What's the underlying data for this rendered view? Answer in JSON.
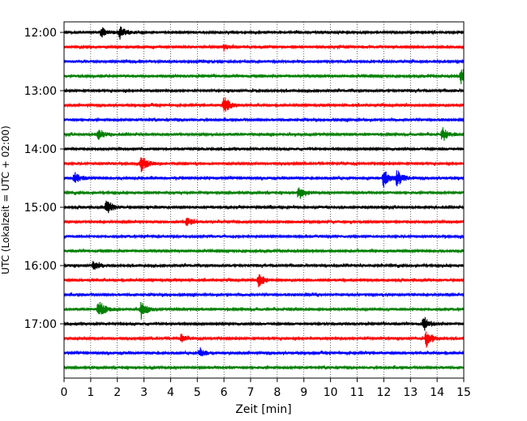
{
  "chart_data": {
    "type": "line",
    "title": "",
    "xlabel": "Zeit  [min]",
    "ylabel": "UTC (Lokalzeit = UTC + 02:00)",
    "xlim": [
      0,
      15
    ],
    "x_ticks": [
      "0",
      "1",
      "2",
      "3",
      "4",
      "5",
      "6",
      "7",
      "8",
      "9",
      "10",
      "11",
      "12",
      "13",
      "14",
      "15"
    ],
    "y_tick_labels": [
      "12:00",
      "13:00",
      "14:00",
      "15:00",
      "16:00",
      "17:00"
    ],
    "grid": "vertical dotted lines at each minute",
    "trace_colors": [
      "#000000",
      "#ff0000",
      "#0000ff",
      "#008000"
    ],
    "traces": [
      {
        "start": "12:00",
        "color": "#000000",
        "events": [
          [
            1.4,
            6
          ],
          [
            2.1,
            8
          ]
        ]
      },
      {
        "start": "12:15",
        "color": "#ff0000",
        "events": [
          [
            6.0,
            3
          ]
        ]
      },
      {
        "start": "12:30",
        "color": "#0000ff",
        "events": []
      },
      {
        "start": "12:45",
        "color": "#008000",
        "events": [
          [
            14.9,
            12
          ]
        ]
      },
      {
        "start": "13:00",
        "color": "#000000",
        "events": []
      },
      {
        "start": "13:15",
        "color": "#ff0000",
        "events": [
          [
            6.0,
            12
          ]
        ]
      },
      {
        "start": "13:30",
        "color": "#0000ff",
        "events": []
      },
      {
        "start": "13:45",
        "color": "#008000",
        "events": [
          [
            1.3,
            7
          ],
          [
            14.2,
            9
          ]
        ]
      },
      {
        "start": "14:00",
        "color": "#000000",
        "events": []
      },
      {
        "start": "14:15",
        "color": "#ff0000",
        "events": [
          [
            2.9,
            10
          ]
        ]
      },
      {
        "start": "14:30",
        "color": "#0000ff",
        "events": [
          [
            0.4,
            7
          ],
          [
            12.0,
            12
          ],
          [
            12.5,
            11
          ]
        ]
      },
      {
        "start": "14:45",
        "color": "#008000",
        "events": [
          [
            8.8,
            9
          ]
        ]
      },
      {
        "start": "15:00",
        "color": "#000000",
        "events": [
          [
            1.6,
            10
          ]
        ]
      },
      {
        "start": "15:15",
        "color": "#ff0000",
        "events": [
          [
            4.6,
            5
          ]
        ]
      },
      {
        "start": "15:30",
        "color": "#0000ff",
        "events": []
      },
      {
        "start": "15:45",
        "color": "#008000",
        "events": []
      },
      {
        "start": "16:00",
        "color": "#000000",
        "events": [
          [
            1.1,
            5
          ]
        ]
      },
      {
        "start": "16:15",
        "color": "#ff0000",
        "events": [
          [
            7.3,
            9
          ]
        ]
      },
      {
        "start": "16:30",
        "color": "#0000ff",
        "events": []
      },
      {
        "start": "16:45",
        "color": "#008000",
        "events": [
          [
            1.3,
            12
          ],
          [
            2.9,
            10
          ]
        ]
      },
      {
        "start": "17:00",
        "color": "#000000",
        "events": [
          [
            13.5,
            10
          ]
        ]
      },
      {
        "start": "17:15",
        "color": "#ff0000",
        "events": [
          [
            13.6,
            11
          ],
          [
            4.4,
            5
          ]
        ]
      },
      {
        "start": "17:30",
        "color": "#0000ff",
        "events": [
          [
            5.1,
            6
          ]
        ]
      },
      {
        "start": "17:45",
        "color": "#008000",
        "events": []
      }
    ]
  }
}
